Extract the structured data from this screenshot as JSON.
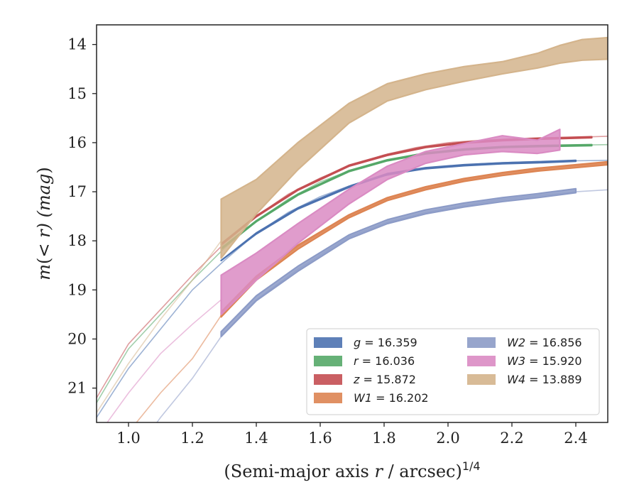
{
  "chart_data": {
    "type": "line",
    "xlabel": "(Semi-major axis r / arcsec)^1/4",
    "ylabel": "m(< r) (mag)",
    "xlim": [
      0.9,
      2.5
    ],
    "ylim": [
      21.7,
      13.6
    ],
    "y_inverted": true,
    "xticks": [
      1.0,
      1.2,
      1.4,
      1.6,
      1.8,
      2.0,
      2.2,
      2.4
    ],
    "xtick_labels": [
      "1.0",
      "1.2",
      "1.4",
      "1.6",
      "1.8",
      "2.0",
      "2.2",
      "2.4"
    ],
    "yticks": [
      14,
      15,
      16,
      17,
      18,
      19,
      20,
      21
    ],
    "ytick_labels": [
      "14",
      "15",
      "16",
      "17",
      "18",
      "19",
      "20",
      "21"
    ],
    "grid": false,
    "legend_position": "lower-right",
    "series": [
      {
        "name": "g = 16.359",
        "var": "g",
        "val": "16.359",
        "color": "#4c72b0",
        "faint": [
          [
            0.9,
            21.6
          ],
          [
            1.0,
            20.6
          ],
          [
            1.2,
            19.0
          ],
          [
            1.3,
            18.4
          ],
          [
            1.4,
            17.85
          ],
          [
            1.5,
            17.42
          ],
          [
            1.6,
            17.1
          ],
          [
            1.7,
            16.86
          ],
          [
            1.8,
            16.68
          ],
          [
            1.9,
            16.56
          ],
          [
            2.0,
            16.48
          ],
          [
            2.1,
            16.43
          ],
          [
            2.2,
            16.4
          ],
          [
            2.3,
            16.38
          ],
          [
            2.4,
            16.37
          ],
          [
            2.5,
            16.36
          ]
        ],
        "band": [
          [
            1.29,
            18.4,
            18.4
          ],
          [
            1.4,
            17.84,
            17.86
          ],
          [
            1.53,
            17.33,
            17.35
          ],
          [
            1.69,
            16.89,
            16.91
          ],
          [
            1.81,
            16.63,
            16.65
          ],
          [
            1.93,
            16.51,
            16.53
          ],
          [
            2.05,
            16.45,
            16.47
          ],
          [
            2.17,
            16.41,
            16.43
          ],
          [
            2.28,
            16.39,
            16.41
          ],
          [
            2.4,
            16.36,
            16.38
          ]
        ]
      },
      {
        "name": "r = 16.036",
        "var": "r",
        "val": "16.036",
        "color": "#55a868",
        "faint": [
          [
            0.9,
            21.3
          ],
          [
            1.0,
            20.2
          ],
          [
            1.2,
            18.8
          ],
          [
            1.3,
            18.15
          ],
          [
            1.4,
            17.6
          ],
          [
            1.5,
            17.15
          ],
          [
            1.6,
            16.8
          ],
          [
            1.7,
            16.55
          ],
          [
            1.8,
            16.37
          ],
          [
            1.9,
            16.24
          ],
          [
            2.0,
            16.16
          ],
          [
            2.1,
            16.11
          ],
          [
            2.2,
            16.08
          ],
          [
            2.3,
            16.06
          ],
          [
            2.4,
            16.05
          ],
          [
            2.5,
            16.04
          ]
        ],
        "band": [
          [
            1.29,
            18.15,
            18.17
          ],
          [
            1.4,
            17.59,
            17.61
          ],
          [
            1.53,
            17.05,
            17.07
          ],
          [
            1.69,
            16.57,
            16.59
          ],
          [
            1.81,
            16.35,
            16.37
          ],
          [
            1.93,
            16.21,
            16.23
          ],
          [
            2.05,
            16.13,
            16.15
          ],
          [
            2.17,
            16.08,
            16.1
          ],
          [
            2.28,
            16.06,
            16.08
          ],
          [
            2.45,
            16.04,
            16.06
          ]
        ]
      },
      {
        "name": "z = 15.872",
        "var": "z",
        "val": "15.872",
        "color": "#c44e52",
        "faint": [
          [
            0.9,
            21.2
          ],
          [
            1.0,
            20.1
          ],
          [
            1.2,
            18.7
          ],
          [
            1.3,
            18.05
          ],
          [
            1.4,
            17.5
          ],
          [
            1.5,
            17.05
          ],
          [
            1.6,
            16.72
          ],
          [
            1.7,
            16.45
          ],
          [
            1.8,
            16.25
          ],
          [
            1.9,
            16.1
          ],
          [
            2.0,
            16.0
          ],
          [
            2.1,
            15.95
          ],
          [
            2.2,
            15.92
          ],
          [
            2.3,
            15.9
          ],
          [
            2.4,
            15.89
          ],
          [
            2.5,
            15.87
          ]
        ],
        "band": [
          [
            1.29,
            18.06,
            18.08
          ],
          [
            1.4,
            17.49,
            17.51
          ],
          [
            1.53,
            16.95,
            16.97
          ],
          [
            1.69,
            16.46,
            16.48
          ],
          [
            1.81,
            16.24,
            16.26
          ],
          [
            1.93,
            16.08,
            16.1
          ],
          [
            2.05,
            15.99,
            16.01
          ],
          [
            2.17,
            15.94,
            15.96
          ],
          [
            2.28,
            15.91,
            15.93
          ],
          [
            2.45,
            15.88,
            15.9
          ]
        ]
      },
      {
        "name": "W1 = 16.202",
        "var": "W1",
        "val": "16.202",
        "color": "#dd8452",
        "faint": [
          [
            0.9,
            22.7
          ],
          [
            1.0,
            21.9
          ],
          [
            1.1,
            21.1
          ],
          [
            1.2,
            20.4
          ],
          [
            1.29,
            19.52
          ],
          [
            1.4,
            18.75
          ],
          [
            1.53,
            18.12
          ],
          [
            1.69,
            17.5
          ],
          [
            1.81,
            17.15
          ],
          [
            1.93,
            16.93
          ],
          [
            2.05,
            16.76
          ],
          [
            2.17,
            16.63
          ],
          [
            2.28,
            16.55
          ],
          [
            2.4,
            16.47
          ],
          [
            2.5,
            16.42
          ]
        ],
        "band": [
          [
            1.29,
            19.45,
            19.55
          ],
          [
            1.4,
            18.72,
            18.8
          ],
          [
            1.53,
            18.09,
            18.17
          ],
          [
            1.69,
            17.47,
            17.53
          ],
          [
            1.81,
            17.12,
            17.18
          ],
          [
            1.93,
            16.9,
            16.96
          ],
          [
            2.05,
            16.73,
            16.79
          ],
          [
            2.17,
            16.61,
            16.67
          ],
          [
            2.28,
            16.52,
            16.58
          ],
          [
            2.5,
            16.39,
            16.45
          ]
        ]
      },
      {
        "name": "W2 = 16.856",
        "var": "W2",
        "val": "16.856",
        "color": "#8c9bc7",
        "faint": [
          [
            0.95,
            23.0
          ],
          [
            1.0,
            22.5
          ],
          [
            1.1,
            21.6
          ],
          [
            1.2,
            20.8
          ],
          [
            1.29,
            19.95
          ],
          [
            1.4,
            19.2
          ],
          [
            1.53,
            18.58
          ],
          [
            1.69,
            17.92
          ],
          [
            1.81,
            17.62
          ],
          [
            1.93,
            17.42
          ],
          [
            2.05,
            17.28
          ],
          [
            2.17,
            17.16
          ],
          [
            2.28,
            17.08
          ],
          [
            2.4,
            17.0
          ],
          [
            2.5,
            16.96
          ]
        ],
        "band": [
          [
            1.29,
            19.85,
            19.95
          ],
          [
            1.4,
            19.12,
            19.22
          ],
          [
            1.53,
            18.52,
            18.62
          ],
          [
            1.69,
            17.88,
            17.96
          ],
          [
            1.81,
            17.57,
            17.65
          ],
          [
            1.93,
            17.37,
            17.45
          ],
          [
            2.05,
            17.23,
            17.31
          ],
          [
            2.17,
            17.12,
            17.2
          ],
          [
            2.28,
            17.04,
            17.12
          ],
          [
            2.4,
            16.94,
            17.02
          ]
        ]
      },
      {
        "name": "W3 = 15.920",
        "var": "W3",
        "val": "15.920",
        "color": "#da8bc3",
        "faint": [
          [
            0.9,
            22.0
          ],
          [
            1.0,
            21.1
          ],
          [
            1.1,
            20.3
          ],
          [
            1.2,
            19.7
          ],
          [
            1.29,
            19.2
          ]
        ],
        "band": [
          [
            1.29,
            18.7,
            19.5
          ],
          [
            1.4,
            18.25,
            18.8
          ],
          [
            1.53,
            17.65,
            18.05
          ],
          [
            1.69,
            16.95,
            17.25
          ],
          [
            1.81,
            16.48,
            16.75
          ],
          [
            1.93,
            16.18,
            16.42
          ],
          [
            2.05,
            16.02,
            16.25
          ],
          [
            2.17,
            15.86,
            16.18
          ],
          [
            2.28,
            15.95,
            16.22
          ],
          [
            2.35,
            15.73,
            16.15
          ]
        ]
      },
      {
        "name": "W4 = 13.889",
        "var": "W4",
        "val": "13.889",
        "color": "#d4b48c",
        "faint": [
          [
            0.9,
            21.5
          ],
          [
            1.0,
            20.5
          ],
          [
            1.1,
            19.6
          ],
          [
            1.2,
            18.8
          ],
          [
            1.29,
            18.0
          ]
        ],
        "band": [
          [
            1.29,
            17.15,
            18.35
          ],
          [
            1.4,
            16.75,
            17.45
          ],
          [
            1.53,
            16.0,
            16.55
          ],
          [
            1.69,
            15.2,
            15.6
          ],
          [
            1.81,
            14.8,
            15.15
          ],
          [
            1.93,
            14.6,
            14.92
          ],
          [
            2.05,
            14.45,
            14.75
          ],
          [
            2.17,
            14.35,
            14.6
          ],
          [
            2.28,
            14.18,
            14.48
          ],
          [
            2.35,
            14.02,
            14.38
          ],
          [
            2.42,
            13.9,
            14.32
          ],
          [
            2.5,
            13.86,
            14.3
          ]
        ]
      }
    ]
  }
}
